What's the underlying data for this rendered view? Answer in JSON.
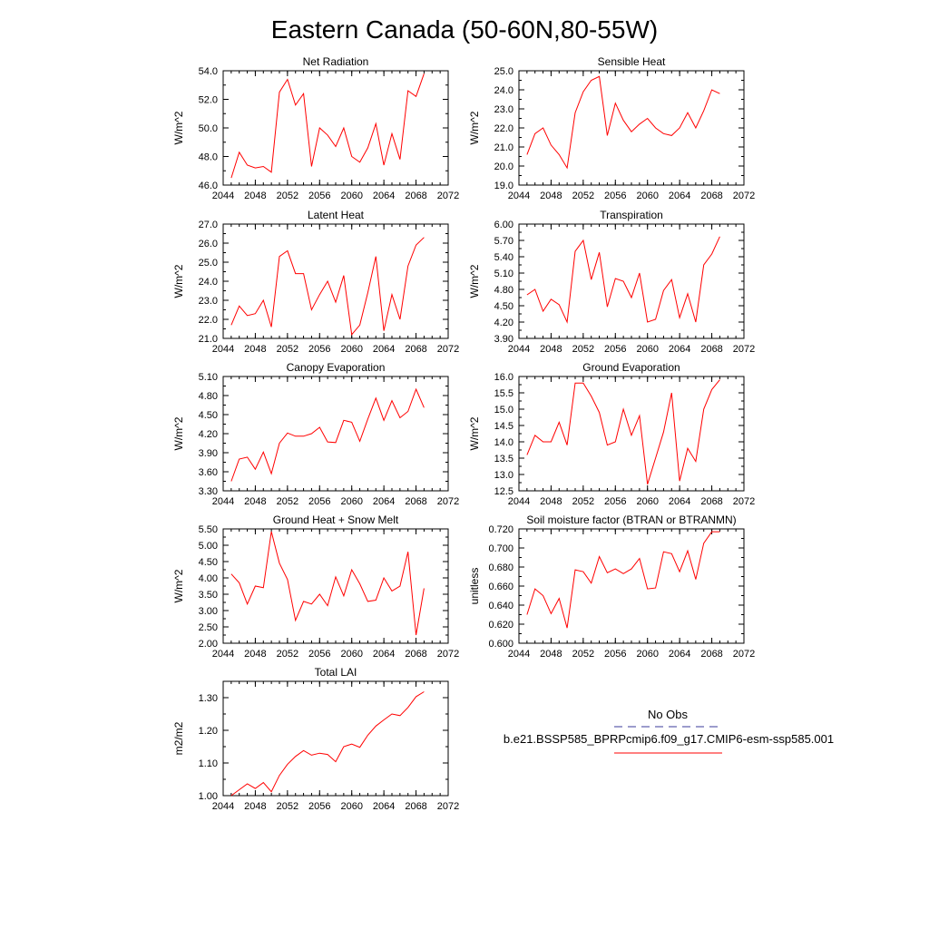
{
  "figure": {
    "title": "Eastern Canada (50-60N,80-55W)",
    "line_color": "#ff0000",
    "obs_color": "#3a3a9a"
  },
  "legend": {
    "obs_label": "No Obs",
    "model_label": "b.e21.BSSP585_BPRPcmip6.f09_g17.CMIP6-esm-ssp585.001"
  },
  "chart_data": [
    {
      "type": "line",
      "title": "Net Radiation",
      "ylabel": "W/m^2",
      "xlim": [
        2044,
        2072
      ],
      "xticks": [
        "2044",
        "2048",
        "2052",
        "2056",
        "2060",
        "2064",
        "2068",
        "2072"
      ],
      "ylim": [
        46.0,
        54.0
      ],
      "yticks": [
        "46.0",
        "48.0",
        "50.0",
        "52.0",
        "54.0"
      ],
      "yminor": 2,
      "x": [
        2045,
        2046,
        2047,
        2048,
        2049,
        2050,
        2051,
        2052,
        2053,
        2054,
        2055,
        2056,
        2057,
        2058,
        2059,
        2060,
        2061,
        2062,
        2063,
        2064,
        2065,
        2066,
        2067,
        2068,
        2069
      ],
      "values": [
        46.5,
        48.3,
        47.4,
        47.2,
        47.3,
        46.9,
        52.5,
        53.4,
        51.6,
        52.4,
        47.3,
        50.0,
        49.5,
        48.7,
        50.0,
        48.0,
        47.6,
        48.6,
        50.3,
        47.4,
        49.6,
        47.8,
        52.6,
        52.2,
        53.8
      ]
    },
    {
      "type": "line",
      "title": "Sensible Heat",
      "ylabel": "W/m^2",
      "xlim": [
        2044,
        2072
      ],
      "xticks": [
        "2044",
        "2048",
        "2052",
        "2056",
        "2060",
        "2064",
        "2068",
        "2072"
      ],
      "ylim": [
        19.0,
        25.0
      ],
      "yticks": [
        "19.0",
        "20.0",
        "21.0",
        "22.0",
        "23.0",
        "24.0",
        "25.0"
      ],
      "yminor": 2,
      "x": [
        2045,
        2046,
        2047,
        2048,
        2049,
        2050,
        2051,
        2052,
        2053,
        2054,
        2055,
        2056,
        2057,
        2058,
        2059,
        2060,
        2061,
        2062,
        2063,
        2064,
        2065,
        2066,
        2067,
        2068,
        2069
      ],
      "values": [
        20.6,
        21.7,
        22.0,
        21.1,
        20.6,
        19.9,
        22.8,
        23.9,
        24.5,
        24.7,
        21.6,
        23.3,
        22.4,
        21.8,
        22.2,
        22.5,
        22.0,
        21.7,
        21.6,
        22.0,
        22.8,
        22.0,
        22.9,
        24.0,
        23.8
      ]
    },
    {
      "type": "line",
      "title": "Latent Heat",
      "ylabel": "W/m^2",
      "xlim": [
        2044,
        2072
      ],
      "xticks": [
        "2044",
        "2048",
        "2052",
        "2056",
        "2060",
        "2064",
        "2068",
        "2072"
      ],
      "ylim": [
        21.0,
        27.0
      ],
      "yticks": [
        "21.0",
        "22.0",
        "23.0",
        "24.0",
        "25.0",
        "26.0",
        "27.0"
      ],
      "yminor": 2,
      "x": [
        2045,
        2046,
        2047,
        2048,
        2049,
        2050,
        2051,
        2052,
        2053,
        2054,
        2055,
        2056,
        2057,
        2058,
        2059,
        2060,
        2061,
        2062,
        2063,
        2064,
        2065,
        2066,
        2067,
        2068,
        2069
      ],
      "values": [
        21.7,
        22.7,
        22.2,
        22.3,
        23.0,
        21.6,
        25.3,
        25.6,
        24.4,
        24.4,
        22.5,
        23.3,
        24.0,
        22.9,
        24.3,
        21.2,
        21.7,
        23.4,
        25.3,
        21.4,
        23.3,
        22.0,
        24.8,
        25.9,
        26.3
      ]
    },
    {
      "type": "line",
      "title": "Transpiration",
      "ylabel": "W/m^2",
      "xlim": [
        2044,
        2072
      ],
      "xticks": [
        "2044",
        "2048",
        "2052",
        "2056",
        "2060",
        "2064",
        "2068",
        "2072"
      ],
      "ylim": [
        3.9,
        6.0
      ],
      "yticks": [
        "3.90",
        "4.20",
        "4.50",
        "4.80",
        "5.10",
        "5.40",
        "5.70",
        "6.00"
      ],
      "yminor": 2,
      "x": [
        2045,
        2046,
        2047,
        2048,
        2049,
        2050,
        2051,
        2052,
        2053,
        2054,
        2055,
        2056,
        2057,
        2058,
        2059,
        2060,
        2061,
        2062,
        2063,
        2064,
        2065,
        2066,
        2067,
        2068,
        2069
      ],
      "values": [
        4.7,
        4.8,
        4.4,
        4.62,
        4.52,
        4.2,
        5.5,
        5.7,
        4.98,
        5.48,
        4.48,
        5.0,
        4.95,
        4.65,
        5.1,
        4.2,
        4.25,
        4.78,
        4.98,
        4.28,
        4.72,
        4.2,
        5.25,
        5.45,
        5.77
      ]
    },
    {
      "type": "line",
      "title": "Canopy Evaporation",
      "ylabel": "W/m^2",
      "xlim": [
        2044,
        2072
      ],
      "xticks": [
        "2044",
        "2048",
        "2052",
        "2056",
        "2060",
        "2064",
        "2068",
        "2072"
      ],
      "ylim": [
        3.3,
        5.1
      ],
      "yticks": [
        "3.30",
        "3.60",
        "3.90",
        "4.20",
        "4.50",
        "4.80",
        "5.10"
      ],
      "yminor": 2,
      "x": [
        2045,
        2046,
        2047,
        2048,
        2049,
        2050,
        2051,
        2052,
        2053,
        2054,
        2055,
        2056,
        2057,
        2058,
        2059,
        2060,
        2061,
        2062,
        2063,
        2064,
        2065,
        2066,
        2067,
        2068,
        2069
      ],
      "values": [
        3.45,
        3.8,
        3.83,
        3.64,
        3.91,
        3.57,
        4.05,
        4.21,
        4.16,
        4.16,
        4.2,
        4.3,
        4.07,
        4.06,
        4.41,
        4.38,
        4.08,
        4.43,
        4.76,
        4.41,
        4.72,
        4.45,
        4.55,
        4.9,
        4.61
      ]
    },
    {
      "type": "line",
      "title": "Ground Evaporation",
      "ylabel": "W/m^2",
      "xlim": [
        2044,
        2072
      ],
      "xticks": [
        "2044",
        "2048",
        "2052",
        "2056",
        "2060",
        "2064",
        "2068",
        "2072"
      ],
      "ylim": [
        12.5,
        16.0
      ],
      "yticks": [
        "12.5",
        "13.0",
        "13.5",
        "14.0",
        "14.5",
        "15.0",
        "15.5",
        "16.0"
      ],
      "yminor": 2,
      "x": [
        2045,
        2046,
        2047,
        2048,
        2049,
        2050,
        2051,
        2052,
        2053,
        2054,
        2055,
        2056,
        2057,
        2058,
        2059,
        2060,
        2061,
        2062,
        2063,
        2064,
        2065,
        2066,
        2067,
        2068,
        2069
      ],
      "values": [
        13.6,
        14.2,
        14.0,
        14.0,
        14.6,
        13.9,
        15.8,
        15.8,
        15.4,
        14.9,
        13.9,
        14.0,
        15.0,
        14.2,
        14.8,
        12.7,
        13.5,
        14.3,
        15.5,
        12.8,
        13.8,
        13.4,
        15.0,
        15.6,
        15.9
      ]
    },
    {
      "type": "line",
      "title": "Ground Heat + Snow Melt",
      "ylabel": "W/m^2",
      "xlim": [
        2044,
        2072
      ],
      "xticks": [
        "2044",
        "2048",
        "2052",
        "2056",
        "2060",
        "2064",
        "2068",
        "2072"
      ],
      "ylim": [
        2.0,
        5.5
      ],
      "yticks": [
        "2.00",
        "2.50",
        "3.00",
        "3.50",
        "4.00",
        "4.50",
        "5.00",
        "5.50"
      ],
      "yminor": 2,
      "x": [
        2045,
        2046,
        2047,
        2048,
        2049,
        2050,
        2051,
        2052,
        2053,
        2054,
        2055,
        2056,
        2057,
        2058,
        2059,
        2060,
        2061,
        2062,
        2063,
        2064,
        2065,
        2066,
        2067,
        2068,
        2069
      ],
      "values": [
        4.12,
        3.85,
        3.2,
        3.75,
        3.7,
        5.42,
        4.45,
        3.95,
        2.7,
        3.28,
        3.2,
        3.5,
        3.15,
        4.03,
        3.45,
        4.25,
        3.82,
        3.28,
        3.32,
        4.0,
        3.6,
        3.75,
        4.8,
        2.25,
        3.68
      ]
    },
    {
      "type": "line",
      "title": "Soil moisture factor (BTRAN or BTRANMN)",
      "ylabel": "unitless",
      "xlim": [
        2044,
        2072
      ],
      "xticks": [
        "2044",
        "2048",
        "2052",
        "2056",
        "2060",
        "2064",
        "2068",
        "2072"
      ],
      "ylim": [
        0.6,
        0.72
      ],
      "yticks": [
        "0.600",
        "0.620",
        "0.640",
        "0.660",
        "0.680",
        "0.700",
        "0.720"
      ],
      "yminor": 2,
      "x": [
        2045,
        2046,
        2047,
        2048,
        2049,
        2050,
        2051,
        2052,
        2053,
        2054,
        2055,
        2056,
        2057,
        2058,
        2059,
        2060,
        2061,
        2062,
        2063,
        2064,
        2065,
        2066,
        2067,
        2068,
        2069
      ],
      "values": [
        0.63,
        0.657,
        0.65,
        0.631,
        0.647,
        0.616,
        0.677,
        0.675,
        0.663,
        0.691,
        0.674,
        0.678,
        0.673,
        0.678,
        0.689,
        0.657,
        0.658,
        0.696,
        0.694,
        0.675,
        0.697,
        0.667,
        0.705,
        0.717,
        0.717
      ]
    },
    {
      "type": "line",
      "title": "Total LAI",
      "ylabel": "m2/m2",
      "xlim": [
        2044,
        2072
      ],
      "xticks": [
        "2044",
        "2048",
        "2052",
        "2056",
        "2060",
        "2064",
        "2068",
        "2072"
      ],
      "ylim": [
        1.0,
        1.35
      ],
      "yticks": [
        "1.00",
        "1.10",
        "1.20",
        "1.30"
      ],
      "yminor": 2,
      "x": [
        2045,
        2046,
        2047,
        2048,
        2049,
        2050,
        2051,
        2052,
        2053,
        2054,
        2055,
        2056,
        2057,
        2058,
        2059,
        2060,
        2061,
        2062,
        2063,
        2064,
        2065,
        2066,
        2067,
        2068,
        2069
      ],
      "values": [
        1.0,
        1.018,
        1.036,
        1.022,
        1.04,
        1.012,
        1.062,
        1.096,
        1.12,
        1.138,
        1.124,
        1.13,
        1.126,
        1.104,
        1.15,
        1.158,
        1.148,
        1.185,
        1.213,
        1.232,
        1.25,
        1.245,
        1.27,
        1.303,
        1.318
      ]
    }
  ]
}
